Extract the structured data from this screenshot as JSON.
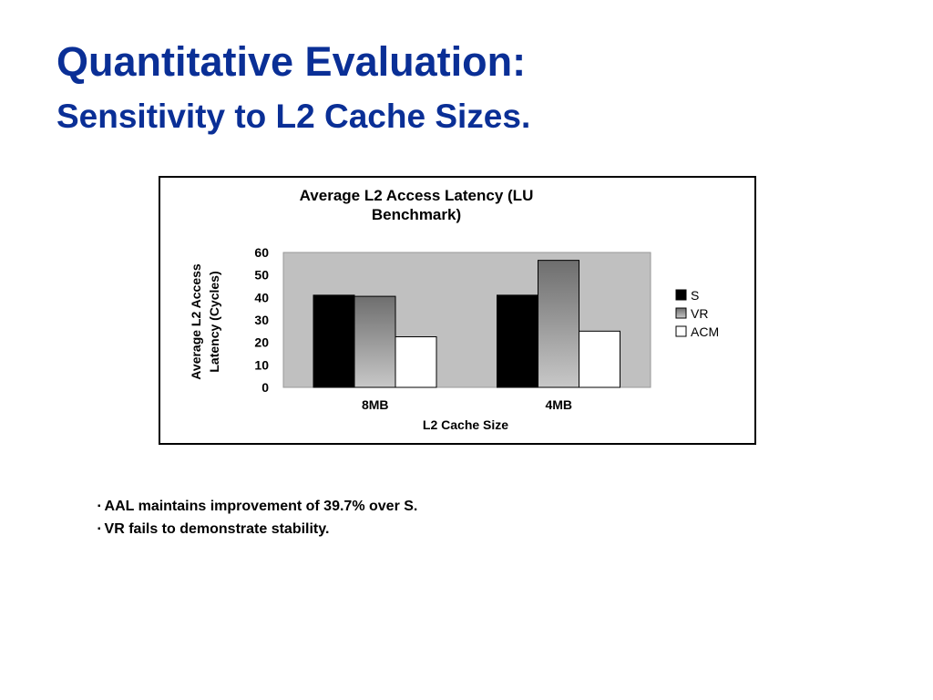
{
  "slide": {
    "title": "Quantitative Evaluation:",
    "subtitle": "Sensitivity to L2 Cache Sizes."
  },
  "bullets": [
    "AAL maintains improvement of 39.7% over S.",
    "VR fails to demonstrate stability."
  ],
  "chart_data": {
    "type": "bar",
    "title_lines": [
      "Average L2 Access Latency (LU",
      "Benchmark)"
    ],
    "xlabel": "L2 Cache Size",
    "ylabel_lines": [
      "Average L2 Access",
      "Latency (Cycles)"
    ],
    "categories": [
      "8MB",
      "4MB"
    ],
    "series": [
      {
        "name": "S",
        "values": [
          41,
          41
        ],
        "color": "#000000"
      },
      {
        "name": "VR",
        "values": [
          40.5,
          56.5
        ],
        "color": "#8c8c8c"
      },
      {
        "name": "ACM",
        "values": [
          22.5,
          25
        ],
        "color": "#ffffff"
      }
    ],
    "ylim": [
      0,
      60
    ],
    "yticks": [
      0,
      10,
      20,
      30,
      40,
      50,
      60
    ],
    "grid": false,
    "plot_background": "#c0c0c0",
    "legend": "right"
  }
}
